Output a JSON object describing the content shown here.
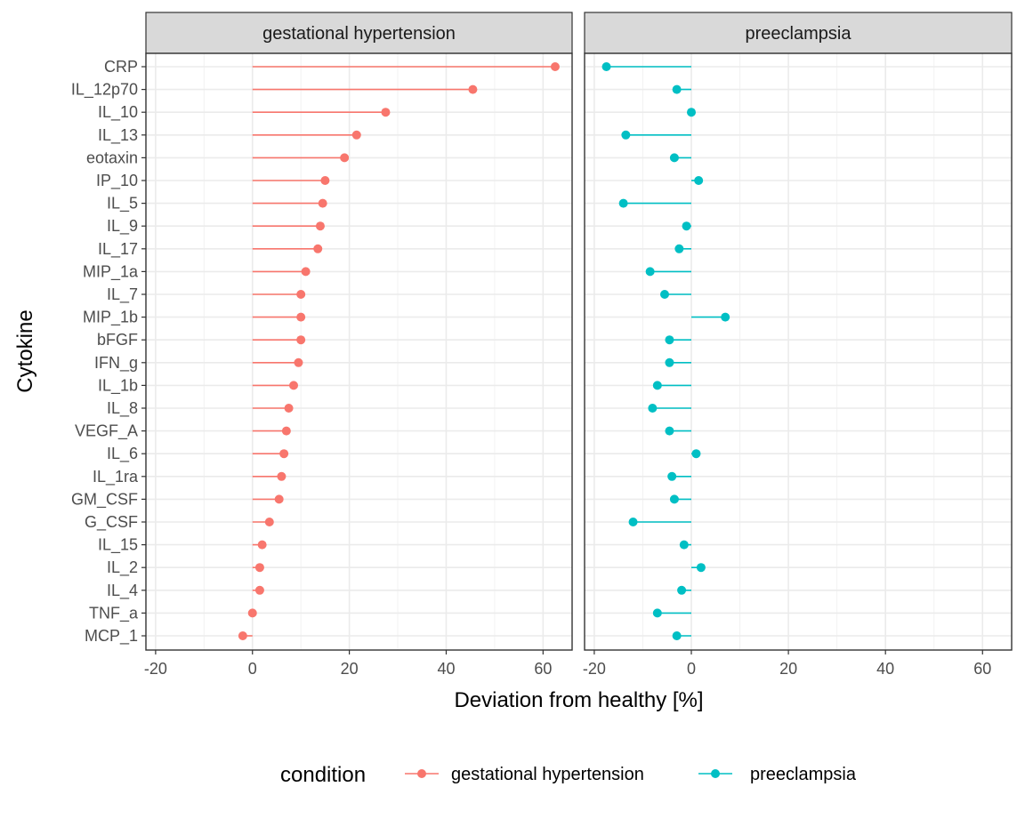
{
  "chart_data": {
    "type": "lollipop",
    "xlabel": "Deviation from healthy [%]",
    "ylabel": "Cytokine",
    "xlim": [
      -22,
      66
    ],
    "xticks": [
      -20,
      0,
      20,
      40,
      60
    ],
    "grid": true,
    "legend": {
      "title": "condition",
      "position": "bottom",
      "entries": [
        "gestational hypertension",
        "preeclampsia"
      ]
    },
    "categories": [
      "CRP",
      "IL_12p70",
      "IL_10",
      "IL_13",
      "eotaxin",
      "IP_10",
      "IL_5",
      "IL_9",
      "IL_17",
      "MIP_1a",
      "IL_7",
      "MIP_1b",
      "bFGF",
      "IFN_g",
      "IL_1b",
      "IL_8",
      "VEGF_A",
      "IL_6",
      "IL_1ra",
      "GM_CSF",
      "G_CSF",
      "IL_15",
      "IL_2",
      "IL_4",
      "TNF_a",
      "MCP_1"
    ],
    "panels": [
      {
        "name": "gestational hypertension",
        "color": "#F8766D",
        "values": [
          62.5,
          45.5,
          27.5,
          21.5,
          19.0,
          15.0,
          14.5,
          14.0,
          13.5,
          11.0,
          10.0,
          10.0,
          10.0,
          9.5,
          8.5,
          7.5,
          7.0,
          6.5,
          6.0,
          5.5,
          3.5,
          2.0,
          1.5,
          1.5,
          0.0,
          -2.0
        ]
      },
      {
        "name": "preeclampsia",
        "color": "#00BFC4",
        "values": [
          -17.5,
          -3.0,
          0.0,
          -13.5,
          -3.5,
          1.5,
          -14.0,
          -1.0,
          -2.5,
          -8.5,
          -5.5,
          7.0,
          -4.5,
          -4.5,
          -7.0,
          -8.0,
          -4.5,
          1.0,
          -4.0,
          -3.5,
          -12.0,
          -1.5,
          2.0,
          -2.0,
          -7.0,
          -3.0
        ]
      }
    ]
  }
}
